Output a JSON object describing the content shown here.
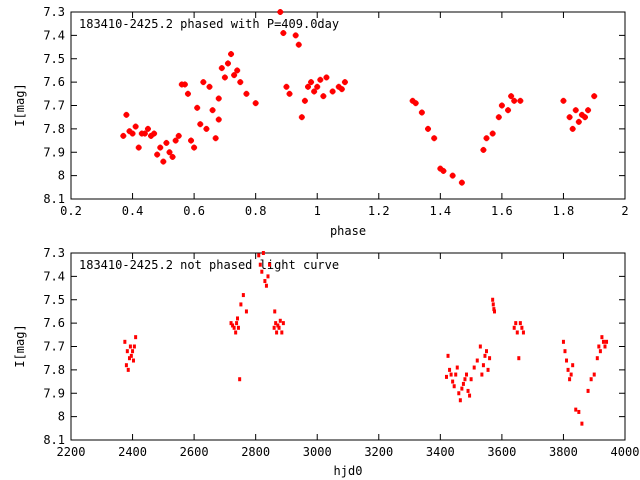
{
  "chart_data": [
    {
      "type": "scatter",
      "title": "183410-2425.2 phased with P=409.0day",
      "xlabel": "phase",
      "ylabel": "I[mag]",
      "xlim": [
        0.2,
        2.0
      ],
      "ylim": [
        8.1,
        7.3
      ],
      "y_inverted": true,
      "xticks": [
        "0.2",
        "0.4",
        "0.6",
        "0.8",
        "1",
        "1.2",
        "1.4",
        "1.6",
        "1.8",
        "2"
      ],
      "yticks": [
        "7.3",
        "7.4",
        "7.5",
        "7.6",
        "7.7",
        "7.8",
        "7.9",
        "8",
        "8.1"
      ],
      "marker": "plus",
      "color": "#ff0000",
      "grid": false,
      "series": [
        {
          "x": [
            0.37,
            0.38,
            0.39,
            0.4,
            0.41,
            0.42,
            0.43,
            0.44,
            0.45,
            0.46,
            0.47,
            0.48,
            0.49,
            0.5,
            0.51,
            0.52,
            0.53,
            0.54,
            0.55,
            0.56,
            0.57,
            0.58,
            0.59,
            0.6,
            0.61,
            0.62,
            0.63,
            0.64,
            0.65,
            0.66,
            0.67,
            0.68,
            0.68,
            0.69,
            0.7,
            0.71,
            0.72,
            0.73,
            0.74,
            0.75,
            0.77,
            0.8,
            0.88,
            0.89,
            0.9,
            0.91,
            0.93,
            0.94,
            0.95,
            0.96,
            0.97,
            0.98,
            0.99,
            1.0,
            1.01,
            1.02,
            1.03,
            1.05,
            1.07,
            1.08,
            1.09,
            1.31,
            1.32,
            1.34,
            1.36,
            1.38,
            1.4,
            1.41,
            1.44,
            1.47,
            1.54,
            1.55,
            1.57,
            1.59,
            1.6,
            1.62,
            1.63,
            1.64,
            1.66,
            1.8,
            1.82,
            1.83,
            1.84,
            1.85,
            1.86,
            1.87,
            1.88,
            1.9
          ],
          "y": [
            7.83,
            7.74,
            7.81,
            7.82,
            7.79,
            7.88,
            7.82,
            7.82,
            7.8,
            7.83,
            7.82,
            7.91,
            7.88,
            7.94,
            7.86,
            7.9,
            7.92,
            7.85,
            7.83,
            7.61,
            7.61,
            7.65,
            7.85,
            7.88,
            7.71,
            7.78,
            7.6,
            7.8,
            7.62,
            7.72,
            7.84,
            7.76,
            7.67,
            7.54,
            7.58,
            7.52,
            7.48,
            7.57,
            7.55,
            7.6,
            7.65,
            7.69,
            7.3,
            7.39,
            7.62,
            7.65,
            7.4,
            7.44,
            7.75,
            7.68,
            7.62,
            7.6,
            7.64,
            7.62,
            7.59,
            7.66,
            7.58,
            7.64,
            7.62,
            7.63,
            7.6,
            7.68,
            7.69,
            7.73,
            7.8,
            7.84,
            7.97,
            7.98,
            8.0,
            8.03,
            7.89,
            7.84,
            7.82,
            7.75,
            7.7,
            7.72,
            7.66,
            7.68,
            7.68,
            7.68,
            7.75,
            7.8,
            7.72,
            7.77,
            7.74,
            7.75,
            7.72,
            7.66
          ]
        }
      ]
    },
    {
      "type": "scatter",
      "title": "183410-2425.2 not phased light curve",
      "xlabel": "hjd0",
      "ylabel": "I[mag]",
      "xlim": [
        2200,
        4000
      ],
      "ylim": [
        8.1,
        7.3
      ],
      "y_inverted": true,
      "xticks": [
        "2200",
        "2400",
        "2600",
        "2800",
        "3000",
        "3200",
        "3400",
        "3600",
        "3800",
        "4000"
      ],
      "yticks": [
        "7.3",
        "7.4",
        "7.5",
        "7.6",
        "7.7",
        "7.8",
        "7.9",
        "8",
        "8.1"
      ],
      "marker": "dot",
      "color": "#ff0000",
      "grid": false,
      "series": [
        {
          "x": [
            2375,
            2380,
            2383,
            2386,
            2390,
            2393,
            2396,
            2400,
            2403,
            2406,
            2410,
            2720,
            2725,
            2730,
            2735,
            2738,
            2741,
            2744,
            2748,
            2752,
            2760,
            2770,
            2810,
            2815,
            2820,
            2825,
            2830,
            2835,
            2840,
            2845,
            2860,
            2862,
            2865,
            2868,
            2872,
            2876,
            2880,
            2885,
            2890,
            3420,
            3425,
            3430,
            3435,
            3440,
            3445,
            3450,
            3455,
            3460,
            3465,
            3470,
            3475,
            3480,
            3485,
            3490,
            3495,
            3500,
            3510,
            3520,
            3530,
            3535,
            3540,
            3545,
            3550,
            3555,
            3560,
            3570,
            3572,
            3574,
            3576,
            3640,
            3645,
            3650,
            3655,
            3660,
            3665,
            3670,
            3800,
            3805,
            3810,
            3815,
            3820,
            3825,
            3830,
            3840,
            3850,
            3860,
            3880,
            3890,
            3900,
            3910,
            3915,
            3920,
            3925,
            3930,
            3935,
            3940
          ],
          "y": [
            7.68,
            7.78,
            7.72,
            7.8,
            7.75,
            7.7,
            7.74,
            7.72,
            7.76,
            7.7,
            7.66,
            7.6,
            7.61,
            7.62,
            7.64,
            7.6,
            7.58,
            7.62,
            7.84,
            7.52,
            7.48,
            7.55,
            7.31,
            7.35,
            7.38,
            7.3,
            7.42,
            7.44,
            7.4,
            7.35,
            7.62,
            7.55,
            7.6,
            7.64,
            7.61,
            7.62,
            7.59,
            7.64,
            7.6,
            7.83,
            7.74,
            7.8,
            7.82,
            7.85,
            7.87,
            7.82,
            7.79,
            7.9,
            7.93,
            7.88,
            7.86,
            7.84,
            7.82,
            7.89,
            7.91,
            7.84,
            7.79,
            7.76,
            7.7,
            7.82,
            7.78,
            7.74,
            7.72,
            7.8,
            7.75,
            7.5,
            7.52,
            7.54,
            7.55,
            7.62,
            7.6,
            7.64,
            7.75,
            7.6,
            7.62,
            7.64,
            7.68,
            7.72,
            7.76,
            7.8,
            7.84,
            7.82,
            7.78,
            7.97,
            7.98,
            8.03,
            7.89,
            7.84,
            7.82,
            7.75,
            7.7,
            7.72,
            7.66,
            7.68,
            7.7,
            7.68
          ]
        }
      ]
    }
  ]
}
